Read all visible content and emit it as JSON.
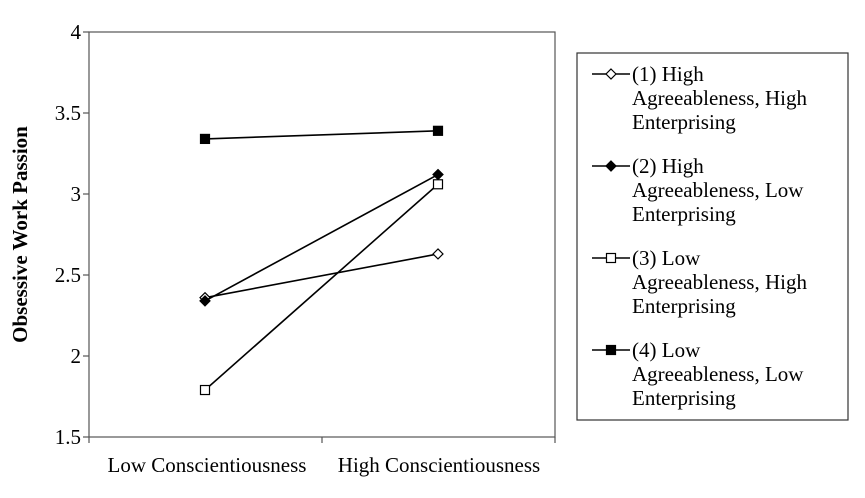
{
  "chart_data": {
    "type": "line",
    "title": "",
    "xlabel": "",
    "ylabel": "Obsessive Work Passion",
    "ylim": [
      1.5,
      4
    ],
    "yticks": [
      "1.5",
      "2",
      "2.5",
      "3",
      "3.5",
      "4"
    ],
    "categories": [
      "Low Conscientiousness",
      "High Conscientiousness"
    ],
    "grid": false,
    "legend_position": "right",
    "series": [
      {
        "name": "(1) High Agreeableness, High Enterprising",
        "legend_lines": [
          "(1) High",
          "Agreeableness, High",
          "Enterprising"
        ],
        "marker": "diamond-open",
        "values": [
          2.36,
          2.63
        ]
      },
      {
        "name": "(2) High Agreeableness, Low Enterprising",
        "legend_lines": [
          "(2) High",
          "Agreeableness, Low",
          "Enterprising"
        ],
        "marker": "diamond-filled",
        "values": [
          2.34,
          3.12
        ]
      },
      {
        "name": "(3) Low Agreeableness, High Enterprising",
        "legend_lines": [
          "(3) Low",
          "Agreeableness, High",
          "Enterprising"
        ],
        "marker": "square-open",
        "values": [
          1.79,
          3.06
        ]
      },
      {
        "name": "(4) Low Agreeableness, Low Enterprising",
        "legend_lines": [
          "(4) Low",
          "Agreeableness, Low",
          "Enterprising"
        ],
        "marker": "square-filled",
        "values": [
          3.34,
          3.39
        ]
      }
    ]
  }
}
